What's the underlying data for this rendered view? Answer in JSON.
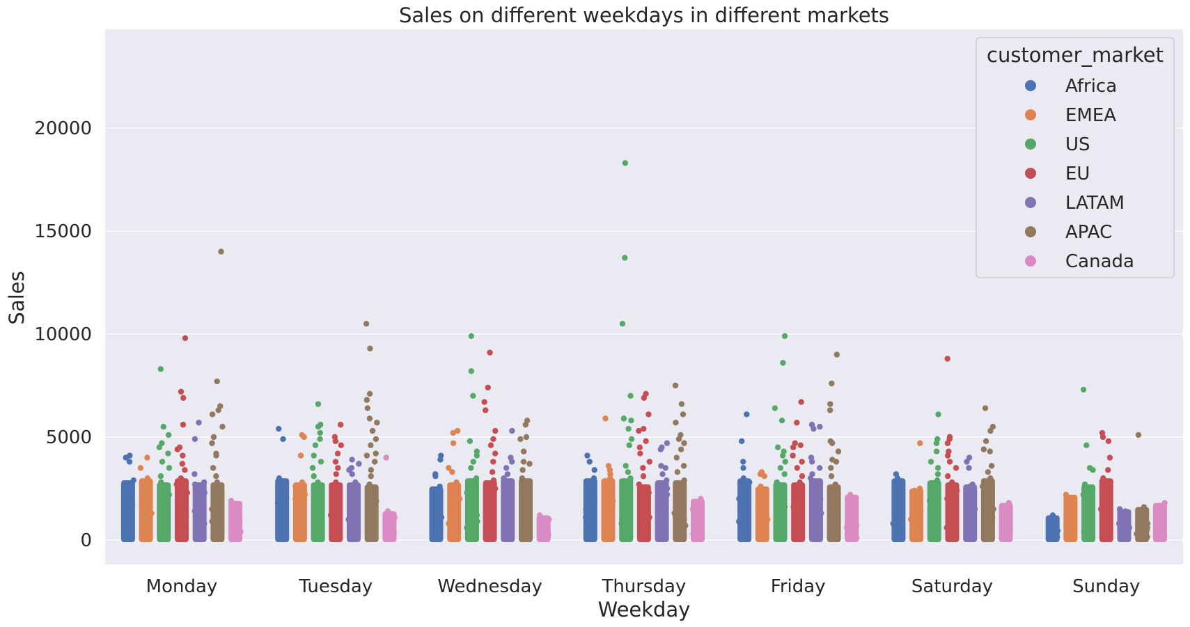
{
  "chart_data": {
    "type": "scatter",
    "subtype": "strip",
    "title": "Sales on different weekdays in different markets",
    "xlabel": "Weekday",
    "ylabel": "Sales",
    "categories": [
      "Monday",
      "Tuesday",
      "Wednesday",
      "Thursday",
      "Friday",
      "Saturday",
      "Sunday"
    ],
    "ylim": [
      -1200,
      24800
    ],
    "yticks": [
      0,
      5000,
      10000,
      15000,
      20000
    ],
    "grid": true,
    "legend": {
      "title": "customer_market",
      "placement": "top-right"
    },
    "series": [
      {
        "name": "Africa",
        "color": "#4c72b0",
        "values": [
          [
            4100,
            4000,
            3800,
            2900,
            2400,
            2300,
            1900,
            1700,
            1500,
            1300,
            1100,
            900,
            700
          ],
          [
            5400,
            4900,
            3000,
            2900,
            2300,
            2100,
            1900,
            1800,
            1600,
            1300,
            1000,
            800,
            600
          ],
          [
            4100,
            3900,
            3200,
            3100,
            2600,
            2300,
            2000,
            1800,
            1500,
            1300,
            1100,
            900,
            700
          ],
          [
            4100,
            3800,
            3400,
            3000,
            2800,
            2400,
            2000,
            1800,
            1500,
            1300,
            1100,
            900,
            700
          ],
          [
            6100,
            4800,
            3800,
            3500,
            3000,
            2800,
            2200,
            2000,
            1700,
            1400,
            1100,
            900,
            700
          ],
          [
            3200,
            3000,
            2400,
            2200,
            2000,
            1800,
            1500,
            1300,
            1000,
            800,
            600,
            400
          ],
          [
            1200,
            900,
            700,
            600,
            450,
            350,
            250,
            150
          ]
        ]
      },
      {
        "name": "EMEA",
        "color": "#dd8452",
        "values": [
          [
            4000,
            3500,
            3000,
            2800,
            2500,
            2200,
            2000,
            1800,
            1500,
            1300,
            1000,
            800,
            600
          ],
          [
            5100,
            5000,
            4100,
            2800,
            2600,
            2200,
            2000,
            1700,
            1500,
            1200,
            1000,
            800,
            600
          ],
          [
            5300,
            5200,
            4700,
            3500,
            3300,
            2800,
            2600,
            2300,
            2000,
            1700,
            1400,
            1100,
            800
          ],
          [
            5900,
            3600,
            3400,
            3200,
            3000,
            2800,
            2200,
            1900,
            1600,
            1300,
            1000,
            700,
            500
          ],
          [
            3300,
            3200,
            3100,
            2600,
            2400,
            2000,
            1800,
            1500,
            1200,
            1000,
            800,
            600
          ],
          [
            4700,
            2500,
            2400,
            2200,
            1800,
            1600,
            1400,
            1200,
            1000,
            800,
            600
          ],
          [
            2200,
            1400,
            900,
            800,
            600,
            450,
            300,
            150
          ]
        ]
      },
      {
        "name": "US",
        "color": "#55a868",
        "values": [
          [
            8300,
            5500,
            5100,
            4700,
            4500,
            4200,
            3800,
            3500,
            3100,
            2800,
            2500,
            2200,
            1800,
            1500,
            1200,
            900,
            600
          ],
          [
            6600,
            5600,
            5500,
            5200,
            4900,
            4600,
            4100,
            3800,
            3500,
            3100,
            2800,
            2400,
            2000,
            1600,
            1200,
            900,
            600
          ],
          [
            9900,
            8200,
            7000,
            4800,
            4300,
            4100,
            3800,
            3500,
            3000,
            2800,
            2300,
            2000,
            1600,
            1200,
            900,
            600
          ],
          [
            18300,
            13700,
            10500,
            7000,
            5900,
            5800,
            5400,
            4900,
            4600,
            3600,
            3300,
            3000,
            2700,
            2300,
            1900,
            1500,
            1100,
            800
          ],
          [
            9900,
            8600,
            6400,
            5800,
            4500,
            4300,
            4100,
            3800,
            3500,
            3200,
            2800,
            2400,
            2000,
            1600,
            1200,
            900,
            600
          ],
          [
            6100,
            4900,
            4700,
            4300,
            3800,
            3500,
            3200,
            2900,
            2600,
            2200,
            1900,
            1600,
            1200,
            900,
            600
          ],
          [
            7300,
            4600,
            3500,
            3400,
            2700,
            2200,
            2000,
            1500,
            1200,
            900,
            600,
            400
          ]
        ]
      },
      {
        "name": "EU",
        "color": "#c44e52",
        "values": [
          [
            9800,
            7200,
            6900,
            5600,
            4500,
            4400,
            4100,
            3700,
            3400,
            3000,
            2700,
            2300,
            2000,
            1600,
            1300,
            1000,
            700
          ],
          [
            5600,
            5000,
            4800,
            4600,
            4200,
            3800,
            3500,
            3200,
            2800,
            2500,
            2200,
            1800,
            1500,
            1200,
            900,
            600
          ],
          [
            9100,
            7400,
            6700,
            6300,
            5300,
            4900,
            4600,
            4200,
            3800,
            3300,
            2900,
            2500,
            2100,
            1700,
            1300,
            1000,
            700
          ],
          [
            7100,
            6900,
            6100,
            5400,
            5300,
            4800,
            4500,
            4200,
            3800,
            3500,
            3100,
            2700,
            2300,
            1900,
            1500,
            1100,
            800
          ],
          [
            6700,
            5700,
            4700,
            4600,
            4500,
            4100,
            3800,
            3500,
            3100,
            2800,
            2400,
            2000,
            1600,
            1200,
            900,
            600
          ],
          [
            8800,
            5000,
            4900,
            4700,
            4300,
            4100,
            3800,
            3500,
            3100,
            2800,
            2400,
            2000,
            1600,
            1200,
            900,
            600
          ],
          [
            5200,
            5000,
            4800,
            4000,
            3400,
            3000,
            2700,
            2200,
            1800,
            1500,
            1200,
            900,
            600,
            400
          ]
        ]
      },
      {
        "name": "LATAM",
        "color": "#8172b3",
        "values": [
          [
            5700,
            4900,
            3200,
            2800,
            2700,
            2600,
            2300,
            2000,
            1700,
            1400,
            1100,
            800,
            600
          ],
          [
            3900,
            3700,
            3500,
            3400,
            3200,
            2800,
            2500,
            2200,
            1900,
            1600,
            1300,
            1000,
            700
          ],
          [
            5300,
            4000,
            3800,
            3500,
            3200,
            3000,
            2700,
            2300,
            2000,
            1700,
            1400,
            1100,
            800
          ],
          [
            4700,
            4500,
            4400,
            3600,
            3500,
            3200,
            2900,
            2500,
            2200,
            1900,
            1500,
            1200,
            900,
            600
          ],
          [
            5600,
            5500,
            5400,
            4000,
            3800,
            3500,
            3200,
            3000,
            2700,
            2400,
            2000,
            1600,
            1300,
            1000,
            700
          ],
          [
            4000,
            3800,
            3500,
            2700,
            2600,
            2400,
            2100,
            1800,
            1500,
            1200,
            900,
            600
          ],
          [
            1500,
            1400,
            1200,
            1000,
            800,
            600,
            400,
            250
          ]
        ]
      },
      {
        "name": "APAC",
        "color": "#937860",
        "values": [
          [
            14000,
            7700,
            6500,
            6300,
            6100,
            5500,
            5000,
            4700,
            4200,
            4100,
            3500,
            3100,
            2800,
            2500,
            2200,
            1800,
            1500,
            1200,
            900,
            600
          ],
          [
            10500,
            9300,
            7100,
            6800,
            6400,
            5900,
            5700,
            5300,
            4900,
            4600,
            4200,
            4100,
            3800,
            3400,
            3100,
            2700,
            2300,
            1900,
            1500,
            1100,
            800
          ],
          [
            5800,
            5600,
            5000,
            4900,
            4300,
            3800,
            3700,
            3400,
            3000,
            2700,
            2400,
            2000,
            1600,
            1300,
            1000,
            700
          ],
          [
            7500,
            6600,
            6100,
            5700,
            5100,
            4900,
            4700,
            4400,
            4000,
            3600,
            3300,
            2900,
            2500,
            2100,
            1700,
            1300,
            1000,
            700
          ],
          [
            9000,
            7600,
            6600,
            6300,
            4800,
            4700,
            4300,
            3900,
            3800,
            3500,
            3100,
            2700,
            2300,
            1900,
            1500,
            1100,
            800
          ],
          [
            6400,
            5500,
            5300,
            4800,
            4400,
            4300,
            3600,
            3300,
            3000,
            2600,
            2300,
            1900,
            1500,
            1100,
            800
          ],
          [
            5100,
            1600,
            1200,
            900,
            800,
            600,
            450,
            300,
            150
          ]
        ]
      },
      {
        "name": "Canada",
        "color": "#da8bc3",
        "values": [
          [
            1900,
            1200,
            1000,
            900,
            700,
            600,
            500,
            400,
            300,
            200,
            100
          ],
          [
            4000,
            1400,
            1200,
            1100,
            900,
            700,
            600,
            400,
            300,
            200,
            100
          ],
          [
            1200,
            1000,
            900,
            700,
            600,
            500,
            400,
            300,
            200,
            100
          ],
          [
            2000,
            1700,
            1500,
            1100,
            800,
            700,
            500,
            300,
            200,
            100
          ],
          [
            2200,
            1300,
            800,
            700,
            600,
            500,
            400,
            300,
            200,
            100
          ],
          [
            1800,
            1400,
            1000,
            600,
            500,
            400,
            300,
            200,
            100
          ],
          [
            1800,
            400,
            200,
            50
          ]
        ]
      }
    ]
  }
}
